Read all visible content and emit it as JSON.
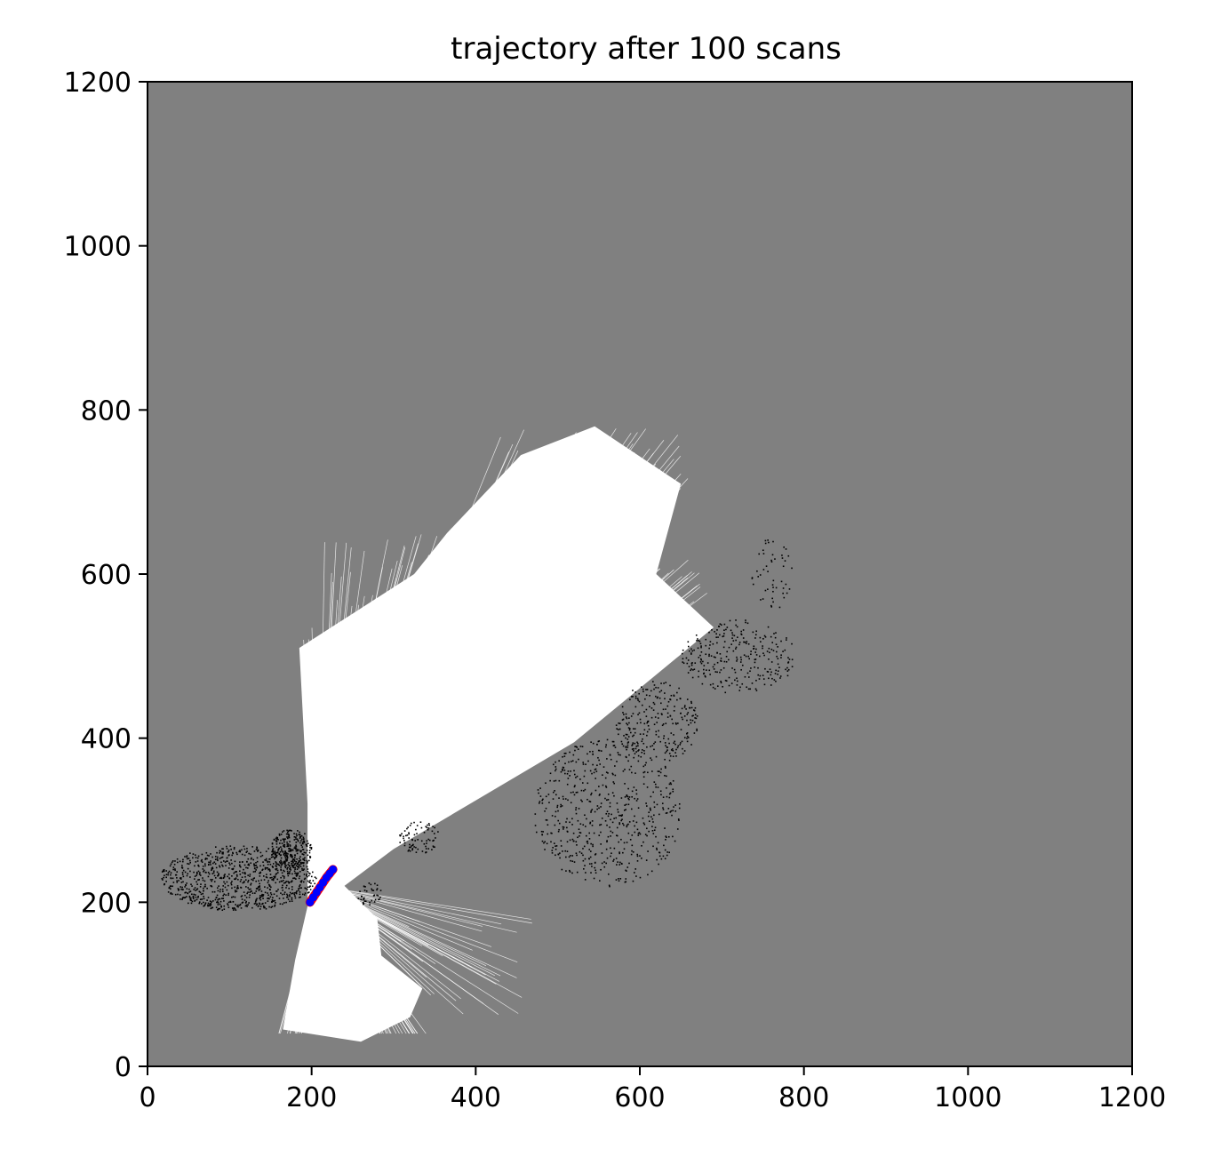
{
  "chart_data": {
    "type": "heatmap",
    "title": "trajectory after 100 scans",
    "xlabel": "",
    "ylabel": "",
    "xlim": [
      0,
      1200
    ],
    "ylim": [
      1200,
      0
    ],
    "x_ticks": [
      0,
      200,
      400,
      600,
      800,
      1000,
      1200
    ],
    "y_ticks": [
      0,
      200,
      400,
      600,
      800,
      1000,
      1200
    ],
    "x_tick_labels": [
      "0",
      "200",
      "400",
      "600",
      "800",
      "1000",
      "1200"
    ],
    "y_tick_labels": [
      "0",
      "200",
      "400",
      "600",
      "800",
      "1000",
      "1200"
    ],
    "grid": false,
    "colors": {
      "unknown": "#808080",
      "free": "#ffffff",
      "occupied": "#000000",
      "trajectory": "#0000ff",
      "trajectory_edge": "#ff0000"
    },
    "free_space": [
      [
        [
          195,
          195
        ],
        [
          180,
          130
        ],
        [
          165,
          45
        ],
        [
          260,
          30
        ],
        [
          320,
          60
        ],
        [
          335,
          95
        ],
        [
          285,
          135
        ],
        [
          280,
          180
        ],
        [
          240,
          220
        ],
        [
          300,
          265
        ],
        [
          520,
          395
        ],
        [
          690,
          535
        ],
        [
          620,
          600
        ],
        [
          650,
          710
        ],
        [
          545,
          780
        ],
        [
          455,
          745
        ],
        [
          365,
          650
        ],
        [
          325,
          600
        ],
        [
          185,
          510
        ],
        [
          195,
          320
        ]
      ]
    ],
    "occupied_clusters": [
      {
        "cx": 110,
        "cy": 230,
        "rx": 95,
        "ry": 40,
        "n": 900
      },
      {
        "cx": 175,
        "cy": 265,
        "rx": 25,
        "ry": 25,
        "n": 250
      },
      {
        "cx": 560,
        "cy": 310,
        "rx": 90,
        "ry": 90,
        "n": 600
      },
      {
        "cx": 620,
        "cy": 420,
        "rx": 50,
        "ry": 50,
        "n": 250
      },
      {
        "cx": 720,
        "cy": 500,
        "rx": 70,
        "ry": 45,
        "n": 280
      },
      {
        "cx": 760,
        "cy": 600,
        "rx": 25,
        "ry": 45,
        "n": 50
      },
      {
        "cx": 330,
        "cy": 280,
        "rx": 25,
        "ry": 20,
        "n": 80
      },
      {
        "cx": 270,
        "cy": 210,
        "rx": 15,
        "ry": 15,
        "n": 40
      }
    ],
    "trajectory": {
      "x": [
        198,
        202,
        206,
        210,
        214,
        218,
        222,
        226
      ],
      "y": [
        200,
        206,
        212,
        218,
        224,
        230,
        235,
        240
      ]
    }
  }
}
